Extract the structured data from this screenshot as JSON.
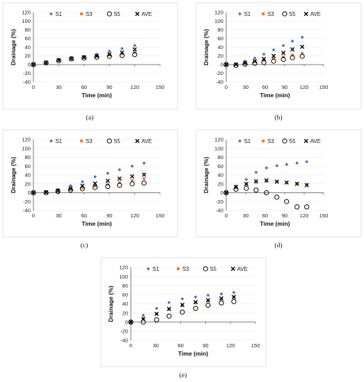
{
  "colors": {
    "S1": "#4472c4",
    "S3": "#ed7d31",
    "S5": "#000000",
    "AVE": "#000000",
    "grid": "#e3e3e3",
    "frame": "#d9d9d9"
  },
  "marker_icons": {
    "S1": "small-diamond",
    "S3": "small-square",
    "S5": "hollow-circle",
    "AVE": "x-cross"
  },
  "chart_data": [
    {
      "type": "scatter",
      "caption": "(a)",
      "xlabel": "Time (min)",
      "ylabel": "Drainage (%)",
      "xlim": [
        0,
        150
      ],
      "ylim": [
        -40,
        120
      ],
      "xticks": [
        0,
        30,
        60,
        90,
        120,
        150
      ],
      "yticks": [
        -40,
        -20,
        0,
        20,
        40,
        60,
        80,
        100,
        120
      ],
      "grid": true,
      "legend_position": "top",
      "series": [
        {
          "name": "S1",
          "marker": "diamond",
          "x": [
            0,
            15,
            30,
            45,
            60,
            75,
            90,
            105,
            120
          ],
          "y": [
            0,
            5,
            12,
            16,
            19,
            24,
            31,
            37,
            44
          ]
        },
        {
          "name": "S3",
          "marker": "square",
          "x": [
            0,
            15,
            30,
            45,
            60,
            75,
            90,
            105,
            120
          ],
          "y": [
            0,
            4,
            10,
            13,
            16,
            19,
            22,
            25,
            28
          ]
        },
        {
          "name": "S5",
          "marker": "circle",
          "x": [
            0,
            15,
            30,
            45,
            60,
            75,
            90,
            105,
            120
          ],
          "y": [
            0,
            4,
            9,
            13,
            15,
            17,
            19,
            21,
            23
          ]
        },
        {
          "name": "AVE",
          "marker": "x",
          "x": [
            0,
            15,
            30,
            45,
            60,
            75,
            90,
            105,
            120
          ],
          "y": [
            0,
            4,
            10,
            14,
            17,
            20,
            24,
            28,
            35
          ]
        }
      ]
    },
    {
      "type": "scatter",
      "caption": "(b)",
      "xlabel": "Time (min)",
      "ylabel": "Drainage (%)",
      "xlim": [
        0,
        150
      ],
      "ylim": [
        -40,
        120
      ],
      "xticks": [
        0,
        30,
        60,
        90,
        120,
        150
      ],
      "yticks": [
        -40,
        -20,
        0,
        20,
        40,
        60,
        80,
        100,
        120
      ],
      "grid": true,
      "legend_position": "top",
      "series": [
        {
          "name": "S1",
          "marker": "diamond",
          "x": [
            0,
            15,
            29,
            44,
            58,
            73,
            88,
            102,
            117
          ],
          "y": [
            0,
            2,
            8,
            15,
            24,
            34,
            44,
            54,
            63
          ]
        },
        {
          "name": "S3",
          "marker": "square",
          "x": [
            0,
            15,
            29,
            44,
            58,
            73,
            88,
            102,
            117
          ],
          "y": [
            0,
            1,
            4,
            7,
            10,
            14,
            18,
            22,
            26
          ]
        },
        {
          "name": "S5",
          "marker": "circle",
          "x": [
            0,
            15,
            29,
            44,
            58,
            73,
            88,
            102,
            117
          ],
          "y": [
            0,
            -2,
            1,
            3,
            5,
            8,
            12,
            16,
            19
          ]
        },
        {
          "name": "AVE",
          "marker": "x",
          "x": [
            0,
            15,
            29,
            44,
            58,
            73,
            88,
            102,
            117
          ],
          "y": [
            0,
            0,
            4,
            8,
            13,
            20,
            27,
            35,
            41
          ]
        }
      ]
    },
    {
      "type": "scatter",
      "caption": "(c)",
      "xlabel": "Time (min)",
      "ylabel": "Drainage (%)",
      "xlim": [
        0,
        150
      ],
      "ylim": [
        -40,
        120
      ],
      "xticks": [
        0,
        30,
        60,
        90,
        120,
        150
      ],
      "yticks": [
        -40,
        -20,
        0,
        20,
        40,
        60,
        80,
        100,
        120
      ],
      "grid": true,
      "legend_position": "top",
      "series": [
        {
          "name": "S1",
          "marker": "diamond",
          "x": [
            0,
            15,
            29,
            44,
            58,
            73,
            88,
            102,
            117,
            131
          ],
          "y": [
            0,
            2,
            7,
            16,
            25,
            36,
            44,
            52,
            60,
            67
          ]
        },
        {
          "name": "S3",
          "marker": "square",
          "x": [
            0,
            15,
            29,
            44,
            58,
            73,
            88,
            102,
            117,
            131
          ],
          "y": [
            0,
            1,
            4,
            7,
            11,
            15,
            19,
            23,
            28,
            32
          ]
        },
        {
          "name": "S5",
          "marker": "circle",
          "x": [
            0,
            15,
            29,
            44,
            58,
            73,
            88,
            102,
            117,
            131
          ],
          "y": [
            0,
            0,
            3,
            6,
            9,
            12,
            14,
            17,
            20,
            22
          ]
        },
        {
          "name": "AVE",
          "marker": "x",
          "x": [
            0,
            15,
            29,
            44,
            58,
            73,
            88,
            102,
            117,
            131
          ],
          "y": [
            0,
            1,
            5,
            10,
            16,
            21,
            27,
            32,
            37,
            41
          ]
        }
      ]
    },
    {
      "type": "scatter",
      "caption": "(d)",
      "xlabel": "Time (min)",
      "ylabel": "Drainage (%)",
      "xlim": [
        0,
        150
      ],
      "ylim": [
        -40,
        120
      ],
      "xticks": [
        0,
        30,
        60,
        90,
        120,
        150
      ],
      "yticks": [
        -40,
        -20,
        0,
        20,
        40,
        60,
        80,
        100,
        120
      ],
      "grid": true,
      "legend_position": "top",
      "series": [
        {
          "name": "S1",
          "marker": "diamond",
          "x": [
            0,
            15,
            31,
            46,
            62,
            78,
            93,
            109,
            124
          ],
          "y": [
            0,
            15,
            30,
            46,
            56,
            61,
            64,
            67,
            70
          ]
        },
        {
          "name": "S3",
          "marker": "square",
          "x": [
            0,
            15,
            31,
            46,
            62,
            78,
            93,
            109,
            124
          ],
          "y": [
            0,
            12,
            20,
            24,
            26,
            25,
            23,
            21,
            19
          ]
        },
        {
          "name": "S5",
          "marker": "circle",
          "x": [
            0,
            15,
            31,
            46,
            62,
            78,
            93,
            109,
            124
          ],
          "y": [
            0,
            8,
            10,
            6,
            0,
            -10,
            -20,
            -32,
            -32
          ]
        },
        {
          "name": "AVE",
          "marker": "x",
          "x": [
            0,
            15,
            31,
            46,
            62,
            78,
            93,
            109,
            124
          ],
          "y": [
            0,
            13,
            20,
            26,
            28,
            25,
            23,
            20,
            17
          ]
        }
      ]
    },
    {
      "type": "scatter",
      "caption": "(e)",
      "xlabel": "Time (min)",
      "ylabel": "Drainage (%)",
      "xlim": [
        0,
        150
      ],
      "ylim": [
        -40,
        120
      ],
      "xticks": [
        0,
        30,
        60,
        90,
        120,
        150
      ],
      "yticks": [
        -40,
        -20,
        0,
        20,
        40,
        60,
        80,
        100,
        120
      ],
      "grid": true,
      "legend_position": "top",
      "series": [
        {
          "name": "S1",
          "marker": "diamond",
          "x": [
            0,
            15,
            31,
            46,
            62,
            78,
            93,
            109,
            124
          ],
          "y": [
            0,
            15,
            30,
            43,
            51,
            55,
            59,
            62,
            65
          ]
        },
        {
          "name": "S3",
          "marker": "square",
          "x": [
            0,
            15,
            31,
            46,
            62,
            78,
            93,
            109,
            124
          ],
          "y": [
            0,
            8,
            18,
            28,
            36,
            42,
            47,
            51,
            55
          ]
        },
        {
          "name": "S5",
          "marker": "circle",
          "x": [
            0,
            15,
            31,
            46,
            62,
            78,
            93,
            109,
            124
          ],
          "y": [
            0,
            0,
            5,
            13,
            22,
            30,
            37,
            42,
            45
          ]
        },
        {
          "name": "AVE",
          "marker": "x",
          "x": [
            0,
            15,
            31,
            46,
            62,
            78,
            93,
            109,
            124
          ],
          "y": [
            0,
            7,
            18,
            29,
            38,
            44,
            48,
            52,
            55
          ]
        }
      ]
    }
  ]
}
